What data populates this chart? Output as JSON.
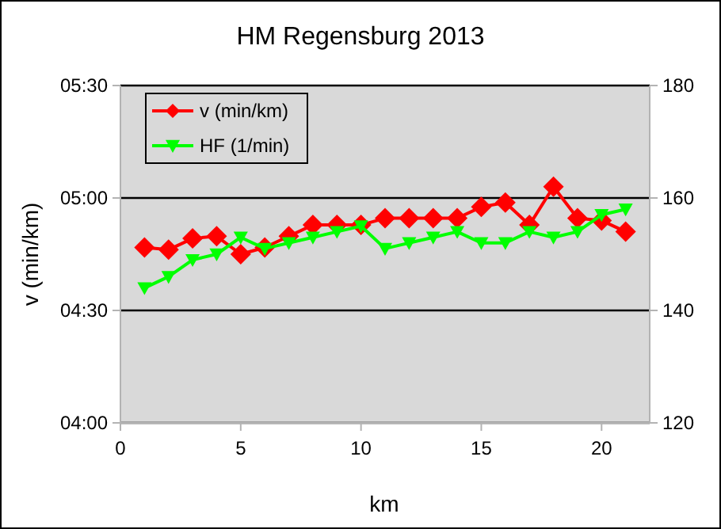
{
  "chart_data": {
    "type": "line",
    "title": "HM Regensburg 2013",
    "xlabel": "km",
    "ylabel": "v (min/km)",
    "x": [
      1,
      2,
      3,
      4,
      5,
      6,
      7,
      8,
      9,
      10,
      11,
      12,
      13,
      14,
      15,
      16,
      17,
      18,
      19,
      20,
      21
    ],
    "series": [
      {
        "name": "v (min/km)",
        "color": "#ff0000",
        "marker": "diamond",
        "values": [
          4.78,
          4.77,
          4.82,
          4.83,
          4.75,
          4.78,
          4.83,
          4.88,
          4.88,
          4.88,
          4.91,
          4.91,
          4.91,
          4.91,
          4.96,
          4.98,
          4.88,
          5.05,
          4.91,
          4.9,
          4.85
        ]
      },
      {
        "name": "HF (1/min)",
        "color": "#00ff00",
        "marker": "triangle",
        "axis": "y2",
        "values": [
          144,
          146,
          149,
          150,
          153,
          151,
          152,
          153,
          154,
          155,
          151,
          152,
          153,
          154,
          152,
          152,
          154,
          153,
          154,
          157,
          158
        ]
      }
    ],
    "xlim": [
      0,
      22
    ],
    "xticks": [
      0,
      5,
      10,
      15,
      20
    ],
    "ylim": [
      4,
      5.5
    ],
    "yticks": [
      {
        "value": 4,
        "label": "04:00"
      },
      {
        "value": 4.5,
        "label": "04:30"
      },
      {
        "value": 5,
        "label": "05:00"
      },
      {
        "value": 5.5,
        "label": "05:30"
      }
    ],
    "y2lim": [
      120,
      180
    ],
    "y2ticks": [
      120,
      140,
      160,
      180
    ],
    "grid": "y",
    "legend": "top left",
    "line_style": "solid"
  }
}
